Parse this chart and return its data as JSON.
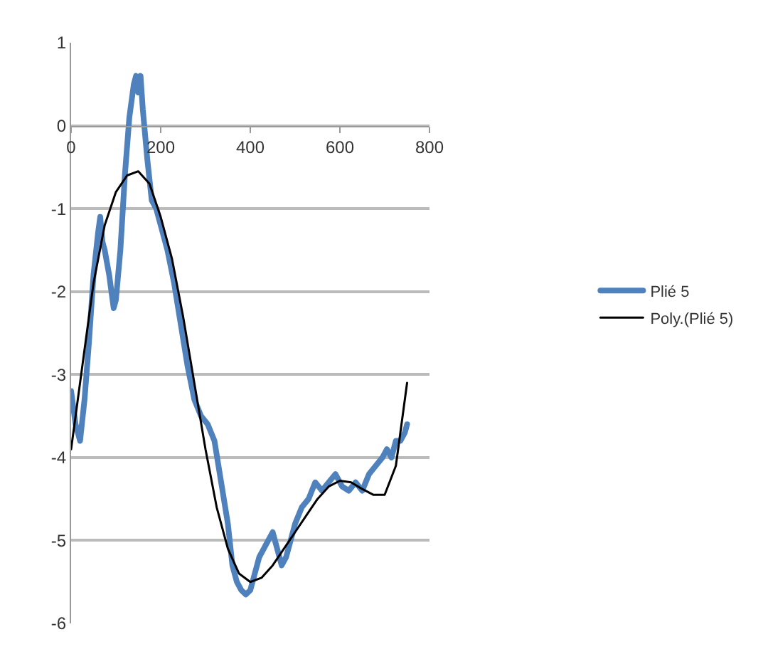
{
  "chart_data": {
    "type": "line",
    "xlim": [
      0,
      800
    ],
    "xticks": [
      0,
      200,
      400,
      600,
      800
    ],
    "ylim": [
      -6,
      1
    ],
    "yticks": [
      -6,
      -5,
      -4,
      -3,
      -2,
      -1,
      0,
      1
    ],
    "grid": "y",
    "legend": "right",
    "marker": "none",
    "series": [
      {
        "name": "Plié 5",
        "color": "#4f81bd",
        "x": [
          0,
          10,
          20,
          30,
          40,
          50,
          60,
          65,
          70,
          75,
          85,
          95,
          100,
          110,
          120,
          130,
          140,
          145,
          150,
          155,
          160,
          170,
          180,
          190,
          200,
          215,
          230,
          245,
          260,
          275,
          290,
          305,
          320,
          335,
          350,
          360,
          370,
          380,
          390,
          400,
          410,
          420,
          430,
          440,
          450,
          460,
          470,
          480,
          490,
          500,
          515,
          530,
          545,
          560,
          575,
          590,
          605,
          620,
          635,
          650,
          665,
          680,
          695,
          705,
          715,
          725,
          735,
          745,
          750
        ],
        "values": [
          -3.2,
          -3.6,
          -3.8,
          -3.3,
          -2.6,
          -1.8,
          -1.3,
          -1.1,
          -1.4,
          -1.5,
          -1.8,
          -2.2,
          -2.1,
          -1.5,
          -0.6,
          0.1,
          0.5,
          0.6,
          0.4,
          0.6,
          0.2,
          -0.4,
          -0.9,
          -1.0,
          -1.2,
          -1.5,
          -1.9,
          -2.4,
          -2.9,
          -3.3,
          -3.5,
          -3.6,
          -3.8,
          -4.3,
          -4.8,
          -5.3,
          -5.5,
          -5.6,
          -5.65,
          -5.6,
          -5.4,
          -5.2,
          -5.1,
          -5.0,
          -4.9,
          -5.1,
          -5.3,
          -5.2,
          -5.0,
          -4.8,
          -4.6,
          -4.5,
          -4.3,
          -4.4,
          -4.3,
          -4.2,
          -4.35,
          -4.4,
          -4.3,
          -4.4,
          -4.2,
          -4.1,
          -4.0,
          -3.9,
          -4.0,
          -3.8,
          -3.8,
          -3.7,
          -3.6
        ]
      },
      {
        "name": "Poly.(Plié 5)",
        "color": "#000000",
        "x": [
          0,
          25,
          50,
          75,
          100,
          125,
          150,
          175,
          200,
          225,
          250,
          275,
          300,
          325,
          350,
          375,
          400,
          425,
          450,
          475,
          500,
          525,
          550,
          575,
          600,
          625,
          650,
          675,
          700,
          725,
          750
        ],
        "values": [
          -3.9,
          -2.9,
          -1.9,
          -1.2,
          -0.8,
          -0.6,
          -0.55,
          -0.7,
          -1.1,
          -1.6,
          -2.3,
          -3.1,
          -3.9,
          -4.6,
          -5.1,
          -5.4,
          -5.5,
          -5.45,
          -5.3,
          -5.1,
          -4.9,
          -4.7,
          -4.5,
          -4.35,
          -4.28,
          -4.3,
          -4.38,
          -4.45,
          -4.45,
          -4.1,
          -3.1
        ]
      }
    ]
  }
}
